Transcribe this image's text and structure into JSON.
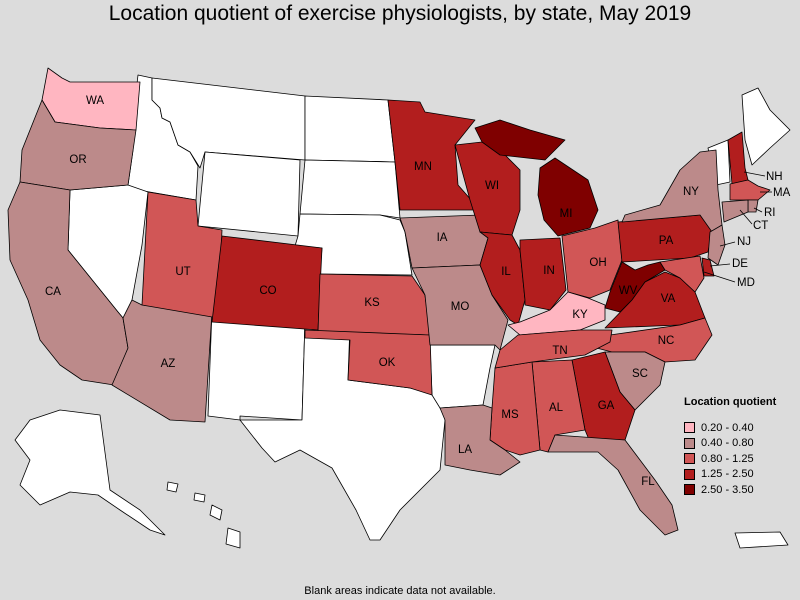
{
  "title": "Location quotient of exercise physiologists, by state, May 2019",
  "footnote": "Blank areas indicate data not available.",
  "legend": {
    "title": "Location quotient",
    "items": [
      {
        "label": "0.20 - 0.40",
        "color": "#ffb6c1"
      },
      {
        "label": "0.40 - 0.80",
        "color": "#bc8a8a"
      },
      {
        "label": "0.80 - 1.25",
        "color": "#d15656"
      },
      {
        "label": "1.25 - 2.50",
        "color": "#b21e1e"
      },
      {
        "label": "2.50 - 3.50",
        "color": "#7f0000"
      }
    ]
  },
  "colors": {
    "blank": "#ffffff",
    "background": "#dcdcdc"
  },
  "states": {
    "WA": {
      "label": "WA",
      "category": 0
    },
    "OR": {
      "label": "OR",
      "category": 1
    },
    "CA": {
      "label": "CA",
      "category": 1
    },
    "AZ": {
      "label": "AZ",
      "category": 1
    },
    "UT": {
      "label": "UT",
      "category": 2
    },
    "CO": {
      "label": "CO",
      "category": 3
    },
    "KS": {
      "label": "KS",
      "category": 2
    },
    "OK": {
      "label": "OK",
      "category": 2
    },
    "IA": {
      "label": "IA",
      "category": 1
    },
    "MO": {
      "label": "MO",
      "category": 1
    },
    "MN": {
      "label": "MN",
      "category": 3
    },
    "WI": {
      "label": "WI",
      "category": 3
    },
    "IL": {
      "label": "IL",
      "category": 3
    },
    "IN": {
      "label": "IN",
      "category": 3
    },
    "MI": {
      "label": "MI",
      "category": 4
    },
    "OH": {
      "label": "OH",
      "category": 2
    },
    "KY": {
      "label": "KY",
      "category": 0
    },
    "WV": {
      "label": "WV",
      "category": 4
    },
    "PA": {
      "label": "PA",
      "category": 3
    },
    "NY": {
      "label": "NY",
      "category": 1
    },
    "VA": {
      "label": "VA",
      "category": 3
    },
    "NC": {
      "label": "NC",
      "category": 2
    },
    "SC": {
      "label": "SC",
      "category": 1
    },
    "GA": {
      "label": "GA",
      "category": 3
    },
    "AL": {
      "label": "AL",
      "category": 2
    },
    "MS": {
      "label": "MS",
      "category": 2
    },
    "TN": {
      "label": "TN",
      "category": 2
    },
    "LA": {
      "label": "LA",
      "category": 1
    },
    "FL": {
      "label": "FL",
      "category": 1
    },
    "NH": {
      "label": "NH",
      "category": 3
    },
    "MA": {
      "label": "MA",
      "category": 2
    },
    "RI": {
      "label": "RI",
      "category": 1
    },
    "CT": {
      "label": "CT",
      "category": 1
    },
    "NJ": {
      "label": "NJ",
      "category": 1
    },
    "DE": {
      "label": "DE",
      "category": 3
    },
    "MD": {
      "label": "MD",
      "category": 2
    }
  }
}
